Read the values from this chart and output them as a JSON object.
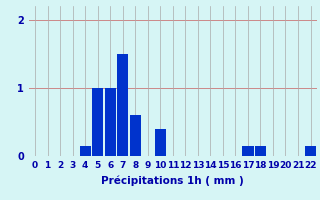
{
  "categories": [
    0,
    1,
    2,
    3,
    4,
    5,
    6,
    7,
    8,
    9,
    10,
    11,
    12,
    13,
    14,
    15,
    16,
    17,
    18,
    19,
    20,
    21,
    22
  ],
  "values": [
    0,
    0,
    0,
    0,
    0.15,
    1.0,
    1.0,
    1.5,
    0.6,
    0,
    0.4,
    0,
    0,
    0,
    0,
    0,
    0,
    0.15,
    0.15,
    0,
    0,
    0,
    0.15
  ],
  "bar_color": "#0033cc",
  "background_color": "#d6f5f5",
  "grid_color_h": "#cc8888",
  "grid_color_v": "#aaaaaa",
  "text_color": "#0000aa",
  "xlabel": "Précipitations 1h ( mm )",
  "yticks": [
    0,
    1,
    2
  ],
  "ylim": [
    0,
    2.2
  ],
  "xlim": [
    -0.5,
    22.5
  ],
  "xlabel_fontsize": 7.5,
  "tick_fontsize": 6.5
}
